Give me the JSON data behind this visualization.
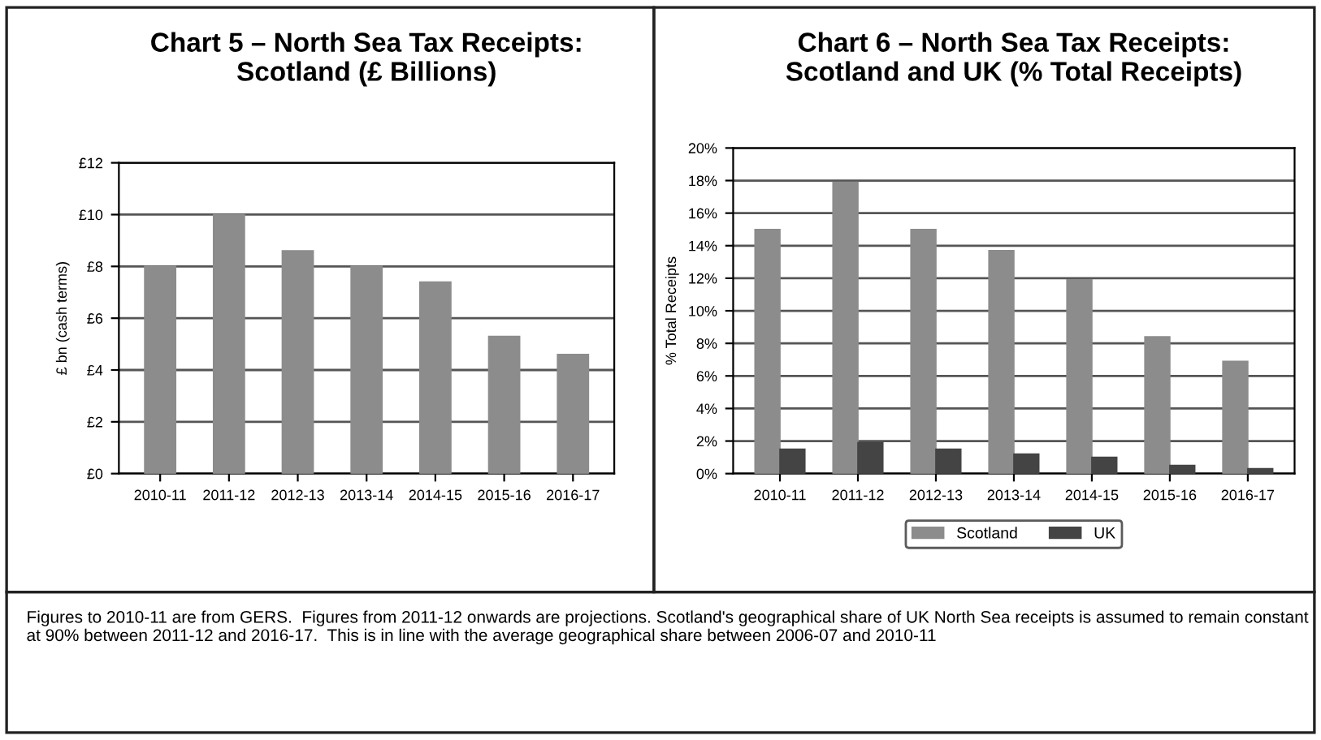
{
  "chart_data": [
    {
      "type": "bar",
      "title": "Chart 5 – North Sea Tax Receipts:\nScotland (£ Billions)",
      "ylabel": "£ bn (cash terms)",
      "categories": [
        "2010-11",
        "2011-12",
        "2012-13",
        "2013-14",
        "2014-15",
        "2015-16",
        "2016-17"
      ],
      "series": [
        {
          "color": "#8c8c8c",
          "values": [
            8.0,
            10.0,
            8.6,
            8.0,
            7.4,
            5.3,
            4.6
          ]
        }
      ],
      "ylim": [
        0,
        12
      ],
      "yticks": [
        {
          "value": 0,
          "label": "£0"
        },
        {
          "value": 2,
          "label": "£2"
        },
        {
          "value": 4,
          "label": "£4"
        },
        {
          "value": 6,
          "label": "£6"
        },
        {
          "value": 8,
          "label": "£8"
        },
        {
          "value": 10,
          "label": "£10"
        },
        {
          "value": 12,
          "label": "£12"
        }
      ],
      "grid": "y",
      "annotations": [
        "Figures to 2010-11 are from GERS.  Figures from 2011-12 onwards are projections. Scotland's geographical share of UK North Sea receipts is assumed to remain constant at 90% between 2011-12 and 2016-17.  This is in line with the average geographical share between 2006-07 and 2010-11"
      ]
    },
    {
      "type": "bar",
      "title": "Chart 6 – North Sea Tax Receipts:\nScotland and UK (% Total Receipts)",
      "ylabel": "% Total Receipts",
      "categories": [
        "2010-11",
        "2011-12",
        "2012-13",
        "2013-14",
        "2014-15",
        "2015-16",
        "2016-17"
      ],
      "series": [
        {
          "name": "Scotland",
          "color": "#8c8c8c",
          "values": [
            15.0,
            17.9,
            15.0,
            13.7,
            11.9,
            8.4,
            6.9
          ]
        },
        {
          "name": "UK",
          "color": "#444444",
          "values": [
            1.5,
            1.9,
            1.5,
            1.2,
            1.0,
            0.5,
            0.3
          ]
        }
      ],
      "ylim": [
        0,
        20
      ],
      "yticks": [
        {
          "value": 0,
          "label": "0%"
        },
        {
          "value": 2,
          "label": "2%"
        },
        {
          "value": 4,
          "label": "4%"
        },
        {
          "value": 6,
          "label": "6%"
        },
        {
          "value": 8,
          "label": "8%"
        },
        {
          "value": 10,
          "label": "10%"
        },
        {
          "value": 12,
          "label": "12%"
        },
        {
          "value": 14,
          "label": "14%"
        },
        {
          "value": 16,
          "label": "16%"
        },
        {
          "value": 18,
          "label": "18%"
        },
        {
          "value": 20,
          "label": "20%"
        }
      ],
      "grid": "y",
      "legend": "bottom"
    }
  ]
}
